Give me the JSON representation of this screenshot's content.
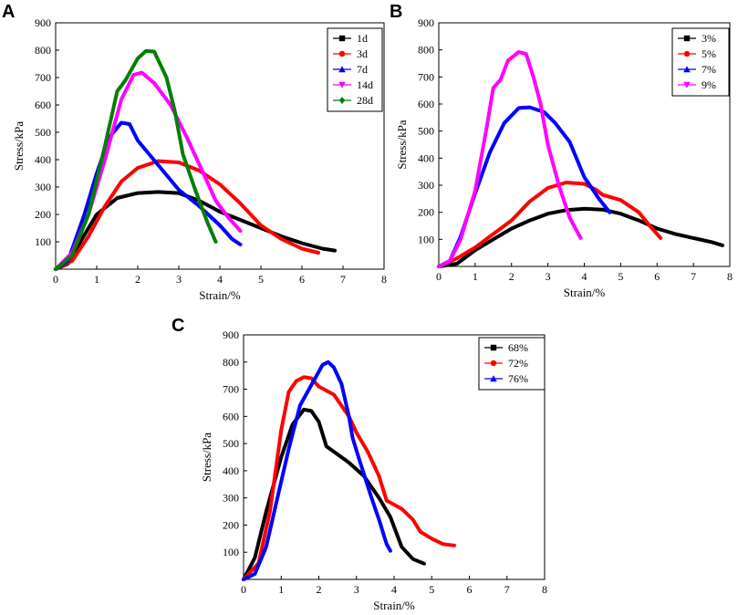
{
  "chart_data": [
    {
      "panel": "A",
      "type": "line",
      "xlabel": "Strain/%",
      "ylabel": "Stress/kPa",
      "xlim": [
        0,
        8
      ],
      "ylim": [
        0,
        900
      ],
      "xticks": [
        "0",
        "1",
        "2",
        "3",
        "4",
        "5",
        "6",
        "7",
        "8"
      ],
      "yticks": [
        "100",
        "200",
        "300",
        "400",
        "500",
        "600",
        "700",
        "800",
        "900"
      ],
      "legend_position": "top-right",
      "series": [
        {
          "name": "1d",
          "color": "#000000",
          "marker": "square",
          "points": [
            [
              0,
              0
            ],
            [
              0.3,
              20
            ],
            [
              0.6,
              100
            ],
            [
              1.0,
              200
            ],
            [
              1.5,
              260
            ],
            [
              2.0,
              278
            ],
            [
              2.5,
              282
            ],
            [
              3.0,
              278
            ],
            [
              3.5,
              250
            ],
            [
              4.0,
              210
            ],
            [
              4.5,
              180
            ],
            [
              5.0,
              150
            ],
            [
              5.5,
              120
            ],
            [
              6.0,
              95
            ],
            [
              6.5,
              75
            ],
            [
              6.8,
              68
            ]
          ]
        },
        {
          "name": "3d",
          "color": "#ff0000",
          "marker": "circle",
          "points": [
            [
              0,
              0
            ],
            [
              0.4,
              30
            ],
            [
              0.8,
              120
            ],
            [
              1.2,
              230
            ],
            [
              1.6,
              320
            ],
            [
              2.0,
              370
            ],
            [
              2.5,
              395
            ],
            [
              3.0,
              390
            ],
            [
              3.5,
              360
            ],
            [
              4.0,
              310
            ],
            [
              4.5,
              240
            ],
            [
              5.0,
              160
            ],
            [
              5.5,
              110
            ],
            [
              6.0,
              75
            ],
            [
              6.4,
              60
            ]
          ]
        },
        {
          "name": "7d",
          "color": "#0000ff",
          "marker": "triangle-up",
          "points": [
            [
              0,
              0
            ],
            [
              0.3,
              30
            ],
            [
              0.7,
              200
            ],
            [
              1.0,
              350
            ],
            [
              1.3,
              480
            ],
            [
              1.6,
              535
            ],
            [
              1.8,
              530
            ],
            [
              2.0,
              470
            ],
            [
              2.5,
              380
            ],
            [
              3.0,
              290
            ],
            [
              3.5,
              230
            ],
            [
              4.0,
              160
            ],
            [
              4.3,
              110
            ],
            [
              4.5,
              90
            ]
          ]
        },
        {
          "name": "14d",
          "color": "#ff00ff",
          "marker": "triangle-down",
          "points": [
            [
              0,
              0
            ],
            [
              0.4,
              60
            ],
            [
              0.8,
              200
            ],
            [
              1.2,
              400
            ],
            [
              1.6,
              620
            ],
            [
              1.9,
              710
            ],
            [
              2.1,
              718
            ],
            [
              2.4,
              680
            ],
            [
              2.8,
              600
            ],
            [
              3.2,
              480
            ],
            [
              3.6,
              350
            ],
            [
              3.9,
              250
            ],
            [
              4.2,
              190
            ],
            [
              4.5,
              140
            ]
          ]
        },
        {
          "name": "28d",
          "color": "#008000",
          "marker": "diamond",
          "points": [
            [
              0,
              0
            ],
            [
              0.4,
              50
            ],
            [
              0.8,
              200
            ],
            [
              1.2,
              450
            ],
            [
              1.5,
              650
            ],
            [
              1.7,
              690
            ],
            [
              2.0,
              770
            ],
            [
              2.2,
              797
            ],
            [
              2.4,
              795
            ],
            [
              2.7,
              700
            ],
            [
              2.9,
              580
            ],
            [
              3.1,
              420
            ],
            [
              3.4,
              290
            ],
            [
              3.7,
              170
            ],
            [
              3.9,
              100
            ]
          ]
        }
      ]
    },
    {
      "panel": "B",
      "type": "line",
      "xlabel": "Strain/%",
      "ylabel": "Stress/kPa",
      "xlim": [
        0,
        8
      ],
      "ylim": [
        0,
        900
      ],
      "xticks": [
        "0",
        "1",
        "2",
        "3",
        "4",
        "5",
        "6",
        "7",
        "8"
      ],
      "yticks": [
        "100",
        "200",
        "300",
        "400",
        "500",
        "600",
        "700",
        "800",
        "900"
      ],
      "legend_position": "top-right",
      "series": [
        {
          "name": "3%",
          "color": "#000000",
          "marker": "square",
          "points": [
            [
              0,
              0
            ],
            [
              0.5,
              10
            ],
            [
              1.0,
              60
            ],
            [
              1.5,
              100
            ],
            [
              2.0,
              140
            ],
            [
              2.5,
              170
            ],
            [
              3.0,
              195
            ],
            [
              3.5,
              208
            ],
            [
              4.0,
              213
            ],
            [
              4.5,
              210
            ],
            [
              5.0,
              195
            ],
            [
              5.5,
              170
            ],
            [
              6.0,
              140
            ],
            [
              6.5,
              120
            ],
            [
              7.0,
              105
            ],
            [
              7.5,
              90
            ],
            [
              7.8,
              78
            ]
          ]
        },
        {
          "name": "5%",
          "color": "#ff0000",
          "marker": "circle",
          "points": [
            [
              0,
              0
            ],
            [
              0.5,
              30
            ],
            [
              1.0,
              70
            ],
            [
              1.5,
              120
            ],
            [
              2.0,
              170
            ],
            [
              2.5,
              240
            ],
            [
              3.0,
              290
            ],
            [
              3.5,
              310
            ],
            [
              4.0,
              305
            ],
            [
              4.3,
              285
            ],
            [
              4.5,
              265
            ],
            [
              5.0,
              245
            ],
            [
              5.5,
              200
            ],
            [
              5.8,
              150
            ],
            [
              6.1,
              105
            ]
          ]
        },
        {
          "name": "7%",
          "color": "#0000ff",
          "marker": "triangle-up",
          "points": [
            [
              0,
              0
            ],
            [
              0.3,
              20
            ],
            [
              0.6,
              110
            ],
            [
              1.0,
              270
            ],
            [
              1.4,
              420
            ],
            [
              1.8,
              530
            ],
            [
              2.2,
              585
            ],
            [
              2.5,
              588
            ],
            [
              2.9,
              570
            ],
            [
              3.2,
              530
            ],
            [
              3.6,
              460
            ],
            [
              4.0,
              330
            ],
            [
              4.4,
              250
            ],
            [
              4.7,
              200
            ]
          ]
        },
        {
          "name": "9%",
          "color": "#ff00ff",
          "marker": "triangle-down",
          "points": [
            [
              0,
              0
            ],
            [
              0.3,
              20
            ],
            [
              0.6,
              100
            ],
            [
              1.0,
              280
            ],
            [
              1.3,
              500
            ],
            [
              1.5,
              660
            ],
            [
              1.7,
              690
            ],
            [
              1.9,
              760
            ],
            [
              2.2,
              792
            ],
            [
              2.4,
              785
            ],
            [
              2.6,
              700
            ],
            [
              2.8,
              600
            ],
            [
              3.0,
              450
            ],
            [
              3.3,
              300
            ],
            [
              3.6,
              180
            ],
            [
              3.9,
              105
            ]
          ]
        }
      ]
    },
    {
      "panel": "C",
      "type": "line",
      "xlabel": "Strain/%",
      "ylabel": "Stress/kPa",
      "xlim": [
        0,
        8
      ],
      "ylim": [
        0,
        900
      ],
      "xticks": [
        "0",
        "1",
        "2",
        "3",
        "4",
        "5",
        "6",
        "7",
        "8"
      ],
      "yticks": [
        "100",
        "200",
        "300",
        "400",
        "500",
        "600",
        "700",
        "800",
        "900"
      ],
      "legend_position": "top-right",
      "series": [
        {
          "name": "68%",
          "color": "#000000",
          "marker": "square",
          "points": [
            [
              0,
              0
            ],
            [
              0.3,
              80
            ],
            [
              0.6,
              250
            ],
            [
              1.0,
              450
            ],
            [
              1.3,
              570
            ],
            [
              1.6,
              625
            ],
            [
              1.8,
              620
            ],
            [
              2.0,
              580
            ],
            [
              2.2,
              490
            ],
            [
              2.5,
              460
            ],
            [
              2.8,
              430
            ],
            [
              3.2,
              380
            ],
            [
              3.6,
              300
            ],
            [
              3.9,
              230
            ],
            [
              4.2,
              120
            ],
            [
              4.5,
              75
            ],
            [
              4.8,
              58
            ]
          ]
        },
        {
          "name": "72%",
          "color": "#ff0000",
          "marker": "circle",
          "points": [
            [
              0,
              0
            ],
            [
              0.4,
              60
            ],
            [
              0.7,
              250
            ],
            [
              1.0,
              550
            ],
            [
              1.2,
              690
            ],
            [
              1.4,
              730
            ],
            [
              1.6,
              745
            ],
            [
              1.8,
              740
            ],
            [
              2.0,
              710
            ],
            [
              2.4,
              680
            ],
            [
              2.8,
              600
            ],
            [
              3.0,
              540
            ],
            [
              3.3,
              470
            ],
            [
              3.6,
              380
            ],
            [
              3.8,
              290
            ],
            [
              4.2,
              260
            ],
            [
              4.5,
              220
            ],
            [
              4.7,
              175
            ],
            [
              5.0,
              150
            ],
            [
              5.3,
              130
            ],
            [
              5.6,
              125
            ]
          ]
        },
        {
          "name": "76%",
          "color": "#0000ff",
          "marker": "triangle-up",
          "points": [
            [
              0,
              0
            ],
            [
              0.3,
              20
            ],
            [
              0.6,
              120
            ],
            [
              0.9,
              300
            ],
            [
              1.2,
              480
            ],
            [
              1.5,
              640
            ],
            [
              1.7,
              690
            ],
            [
              1.9,
              740
            ],
            [
              2.1,
              790
            ],
            [
              2.25,
              800
            ],
            [
              2.4,
              780
            ],
            [
              2.6,
              720
            ],
            [
              2.8,
              600
            ],
            [
              2.9,
              520
            ],
            [
              3.1,
              430
            ],
            [
              3.4,
              300
            ],
            [
              3.6,
              220
            ],
            [
              3.8,
              130
            ],
            [
              3.9,
              105
            ]
          ]
        }
      ]
    }
  ]
}
